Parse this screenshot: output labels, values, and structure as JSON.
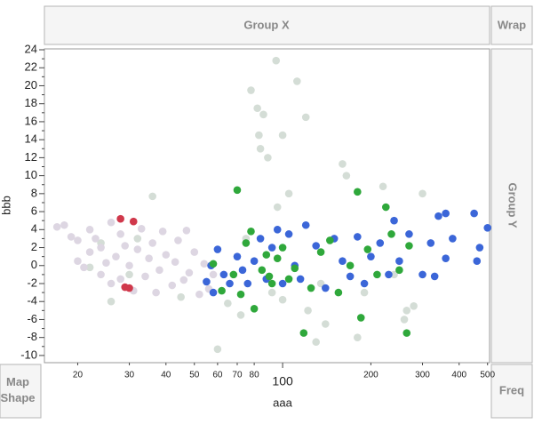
{
  "chart_data": {
    "type": "scatter",
    "zones": {
      "group_x": "Group X",
      "wrap": "Wrap",
      "group_y": "Group Y",
      "map_shape": "Map Shape",
      "freq": "Freq"
    },
    "x_label": "aaa",
    "y_label": "bbb",
    "xscale": "log",
    "xlim": [
      15.4,
      508
    ],
    "ylim": [
      -10.8,
      24.1
    ],
    "xticks": [
      20,
      30,
      40,
      50,
      60,
      70,
      80,
      100,
      200,
      300,
      400,
      500
    ],
    "yticks": [
      -10,
      -8,
      -6,
      -4,
      -2,
      0,
      2,
      4,
      6,
      8,
      10,
      12,
      14,
      16,
      18,
      20,
      22,
      24
    ],
    "yminorticks": [
      -9,
      -7,
      -5,
      -3,
      -1,
      1,
      3,
      5,
      7,
      9,
      11,
      13,
      15,
      17,
      19,
      21,
      23
    ],
    "series": [
      {
        "color": "#d4ddd6",
        "x": [
          22,
          24,
          26,
          30,
          36,
          32,
          45,
          60,
          65,
          75,
          78,
          82,
          83,
          84,
          86,
          89,
          92,
          95,
          96,
          100,
          105,
          112,
          120,
          122,
          130,
          135,
          160,
          165,
          180,
          190,
          220,
          260,
          265,
          280,
          300,
          240,
          72,
          100,
          140
        ],
        "values": [
          -0.2,
          2.5,
          -4.0,
          -1.0,
          7.7,
          3.0,
          -3.5,
          -9.3,
          -4.2,
          3.0,
          19.5,
          17.5,
          14.5,
          13.0,
          16.8,
          12.0,
          -3.0,
          22.8,
          6.5,
          14.5,
          8.0,
          20.5,
          16.5,
          -5.0,
          -8.5,
          -2.0,
          11.3,
          10.0,
          -8.0,
          -3.0,
          8.8,
          -6.0,
          -5.0,
          -4.5,
          8.0,
          -1.0,
          -5.5,
          -3.8,
          -6.5
        ]
      },
      {
        "color": "#ddd6e2",
        "x": [
          17,
          18,
          19,
          20,
          20,
          21,
          22,
          22,
          23,
          24,
          24,
          25,
          26,
          26,
          27,
          28,
          28,
          29,
          30,
          31,
          32,
          33,
          34,
          35,
          36,
          37,
          38,
          39,
          40,
          42,
          43,
          44,
          46,
          47,
          48,
          50,
          52,
          54,
          56,
          58
        ],
        "values": [
          4.3,
          4.5,
          3.2,
          2.8,
          0.5,
          -0.2,
          1.5,
          4.0,
          3.0,
          -1.0,
          2.0,
          0.3,
          -2.0,
          4.8,
          1.0,
          -1.5,
          3.5,
          2.2,
          0.0,
          -2.8,
          1.8,
          4.1,
          -1.2,
          0.8,
          2.5,
          -3.0,
          -0.5,
          3.8,
          1.2,
          -2.2,
          0.4,
          2.8,
          -1.6,
          3.9,
          -0.8,
          1.5,
          -3.2,
          0.2,
          -2.6,
          -1.0
        ]
      },
      {
        "color": "#3b66d8",
        "x": [
          55,
          57,
          58,
          60,
          63,
          66,
          70,
          73,
          76,
          80,
          84,
          88,
          92,
          96,
          100,
          105,
          110,
          115,
          120,
          130,
          140,
          150,
          160,
          170,
          180,
          190,
          200,
          215,
          230,
          240,
          250,
          270,
          300,
          320,
          340,
          360,
          380,
          450,
          470,
          500,
          360,
          330,
          460
        ],
        "values": [
          -1.8,
          0.0,
          -3.0,
          1.8,
          -1.0,
          -2.0,
          1.0,
          -0.5,
          -2.0,
          0.5,
          3.0,
          -1.5,
          2.0,
          4.0,
          -2.0,
          3.5,
          0.0,
          -1.5,
          4.5,
          2.2,
          -2.5,
          3.0,
          0.5,
          -1.2,
          3.2,
          -2.0,
          1.0,
          2.5,
          -1.0,
          5.0,
          0.5,
          3.5,
          -1.0,
          2.5,
          5.5,
          0.8,
          3.0,
          5.8,
          2.0,
          4.2,
          5.8,
          -1.2,
          0.5
        ]
      },
      {
        "color": "#2fa83b",
        "x": [
          58,
          62,
          68,
          72,
          75,
          78,
          80,
          85,
          88,
          92,
          96,
          100,
          105,
          110,
          118,
          125,
          135,
          145,
          155,
          170,
          180,
          185,
          195,
          210,
          225,
          235,
          250,
          265,
          270,
          70,
          90
        ],
        "values": [
          0.2,
          -2.8,
          -1.0,
          -3.2,
          2.5,
          3.8,
          -4.8,
          -0.5,
          1.2,
          -2.0,
          0.8,
          2.0,
          -1.5,
          -0.3,
          -7.5,
          -2.5,
          1.5,
          2.8,
          -3.0,
          0.0,
          8.2,
          -5.8,
          1.8,
          -1.0,
          6.5,
          3.5,
          -0.5,
          -7.5,
          2.2,
          8.4,
          -1.2
        ]
      },
      {
        "color": "#d0384b",
        "x": [
          28,
          31,
          29,
          30
        ],
        "values": [
          5.2,
          4.9,
          -2.4,
          -2.5
        ]
      }
    ]
  }
}
